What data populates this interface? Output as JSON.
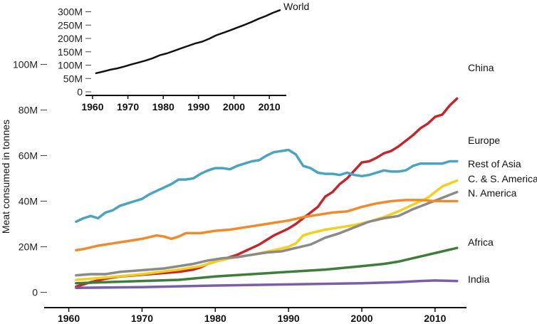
{
  "chart_data": [
    {
      "type": "line",
      "ylabel": "Meat consumed in tonnes",
      "xlim": [
        1958,
        2014
      ],
      "ylim": [
        -2,
        112
      ],
      "x_ticks": [
        1960,
        1970,
        1980,
        1990,
        2000,
        2010
      ],
      "x_tick_labels": [
        "1960",
        "1970",
        "1980",
        "1990",
        "2000",
        "2010"
      ],
      "y_ticks": [
        0,
        20,
        40,
        60,
        80,
        100
      ],
      "y_tick_labels": [
        "0",
        "20M",
        "40M",
        "60M",
        "80M",
        "100M"
      ],
      "grid": false,
      "legend": "inline labels at right end of each line",
      "series": [
        {
          "name": "China",
          "color": "#c1272d",
          "x": [
            1961,
            1963,
            1965,
            1967,
            1969,
            1971,
            1973,
            1975,
            1977,
            1978,
            1979,
            1980,
            1981,
            1982,
            1983,
            1984,
            1985,
            1986,
            1987,
            1988,
            1989,
            1990,
            1991,
            1992,
            1993,
            1994,
            1995,
            1996,
            1997,
            1998,
            1999,
            2000,
            2001,
            2002,
            2003,
            2004,
            2005,
            2006,
            2007,
            2008,
            2009,
            2010,
            2011,
            2012,
            2013
          ],
          "values": [
            2.5,
            4.5,
            6,
            7,
            7.5,
            8,
            8.5,
            9,
            10,
            11,
            12.5,
            13.5,
            14.5,
            15.5,
            16.5,
            18,
            19.5,
            21,
            23,
            25,
            26.5,
            28,
            30,
            32.5,
            35,
            37.5,
            42,
            44,
            47.5,
            50,
            53.5,
            57,
            57.5,
            59,
            61,
            62,
            64,
            66.5,
            69,
            72,
            74,
            77,
            78,
            82,
            85
          ]
        },
        {
          "name": "Europe",
          "color": "#4aa3bf",
          "x": [
            1961,
            1962,
            1963,
            1964,
            1965,
            1966,
            1967,
            1968,
            1969,
            1970,
            1971,
            1972,
            1973,
            1974,
            1975,
            1976,
            1977,
            1978,
            1979,
            1980,
            1981,
            1982,
            1983,
            1984,
            1985,
            1986,
            1987,
            1988,
            1989,
            1990,
            1991,
            1992,
            1993,
            1994,
            1995,
            1996,
            1997,
            1998,
            1999,
            2000,
            2001,
            2002,
            2003,
            2004,
            2005,
            2006,
            2007,
            2008,
            2009,
            2010,
            2011,
            2012,
            2013
          ],
          "values": [
            31,
            32.5,
            33.5,
            32.5,
            35,
            36,
            38,
            39,
            40,
            41,
            43,
            44.5,
            46,
            47.5,
            49.5,
            49.5,
            50,
            52,
            53.5,
            54.5,
            54.5,
            54,
            55.5,
            56.5,
            57.5,
            58,
            60,
            61.5,
            62,
            62.5,
            60.5,
            55.5,
            54.5,
            52.5,
            52,
            52,
            51.5,
            52.5,
            51.5,
            51,
            51.5,
            52.5,
            53.5,
            53,
            53,
            53.5,
            55.5,
            56.5,
            56.5,
            56.5,
            56.5,
            57.5,
            57.5
          ]
        },
        {
          "name": "Rest of Asia",
          "color": "#f5cf1d",
          "x": [
            1961,
            1965,
            1970,
            1975,
            1978,
            1980,
            1982,
            1985,
            1988,
            1990,
            1991,
            1992,
            1993,
            1995,
            1997,
            1999,
            2001,
            2003,
            2005,
            2007,
            2009,
            2011,
            2013
          ],
          "values": [
            5.5,
            6.5,
            8,
            10,
            11.5,
            13.5,
            15,
            16.5,
            18.5,
            20,
            21.5,
            25,
            26,
            27.5,
            28.5,
            29.5,
            31,
            33,
            35.5,
            38.5,
            41.5,
            46.5,
            49
          ]
        },
        {
          "name": "C. & S. America",
          "color": "#8a8a8a",
          "x": [
            1961,
            1963,
            1965,
            1967,
            1969,
            1971,
            1973,
            1975,
            1977,
            1979,
            1981,
            1983,
            1985,
            1987,
            1989,
            1991,
            1993,
            1995,
            1997,
            1999,
            2001,
            2003,
            2005,
            2007,
            2009,
            2011,
            2013
          ],
          "values": [
            7.5,
            8,
            8,
            9,
            9.5,
            10,
            10.5,
            11.5,
            12.5,
            14,
            15,
            15.5,
            16.5,
            17.5,
            18,
            19.5,
            21,
            24,
            26,
            28.5,
            31,
            32.5,
            33.5,
            36.5,
            39,
            41.5,
            44
          ]
        },
        {
          "name": "N. America",
          "color": "#f08a2a",
          "x": [
            1961,
            1962,
            1964,
            1966,
            1968,
            1970,
            1972,
            1973,
            1974,
            1975,
            1976,
            1978,
            1980,
            1982,
            1984,
            1986,
            1988,
            1990,
            1992,
            1994,
            1996,
            1998,
            2000,
            2002,
            2004,
            2006,
            2008,
            2010,
            2013
          ],
          "values": [
            18.5,
            19,
            20.5,
            21.5,
            22.5,
            23.5,
            25,
            24.5,
            23.5,
            24.5,
            26,
            26,
            27,
            27.5,
            28.5,
            29.5,
            30.5,
            31.5,
            33,
            34,
            35,
            35.5,
            37.5,
            39,
            40,
            40.5,
            40.5,
            40,
            40
          ]
        },
        {
          "name": "Africa",
          "color": "#3e7d3a",
          "x": [
            1961,
            1965,
            1970,
            1975,
            1980,
            1985,
            1990,
            1995,
            2000,
            2003,
            2005,
            2007,
            2009,
            2011,
            2013
          ],
          "values": [
            4,
            4.5,
            5,
            5.5,
            7,
            8,
            9,
            10,
            11.5,
            12.5,
            13.5,
            15,
            16.5,
            18,
            19.5
          ]
        },
        {
          "name": "India",
          "color": "#7b5ea7",
          "x": [
            1961,
            1970,
            1980,
            1990,
            2000,
            2005,
            2008,
            2010,
            2013
          ],
          "values": [
            2,
            2.3,
            3,
            3.5,
            4,
            4.5,
            5,
            5.2,
            5
          ]
        }
      ]
    },
    {
      "type": "line",
      "xlim": [
        1958,
        2014
      ],
      "ylim": [
        0,
        320
      ],
      "x_ticks": [
        1960,
        1970,
        1980,
        1990,
        2000,
        2010
      ],
      "x_tick_labels": [
        "1960",
        "1970",
        "1980",
        "1990",
        "2000",
        "2010"
      ],
      "y_ticks": [
        0,
        50,
        100,
        150,
        200,
        250,
        300
      ],
      "y_tick_labels": [
        "0",
        "50M",
        "100M",
        "150M",
        "200M",
        "250M",
        "300M"
      ],
      "series": [
        {
          "name": "World",
          "color": "#111111",
          "x": [
            1961,
            1963,
            1965,
            1967,
            1969,
            1971,
            1973,
            1975,
            1977,
            1979,
            1981,
            1983,
            1985,
            1987,
            1989,
            1991,
            1993,
            1995,
            1997,
            1999,
            2001,
            2003,
            2005,
            2007,
            2009,
            2011,
            2013
          ],
          "values": [
            70,
            76,
            83,
            88,
            95,
            103,
            110,
            117,
            126,
            137,
            144,
            153,
            163,
            172,
            181,
            188,
            199,
            212,
            221,
            231,
            241,
            251,
            262,
            274,
            284,
            296,
            306
          ]
        }
      ]
    }
  ]
}
